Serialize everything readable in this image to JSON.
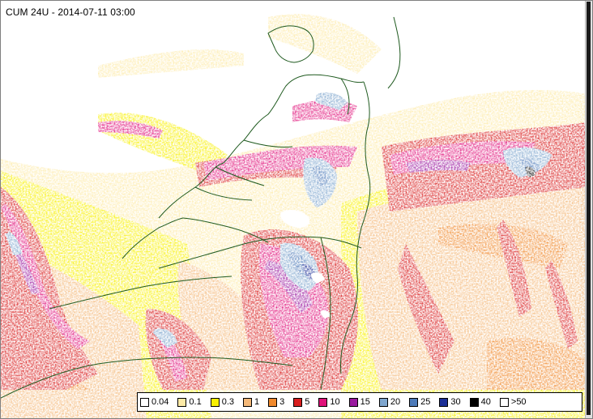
{
  "title": "CUM 24U - 2014-07-11 03:00",
  "legend": [
    {
      "label": "0.04",
      "color": "#ffffff"
    },
    {
      "label": "0.1",
      "color": "#fdeaa6"
    },
    {
      "label": "0.3",
      "color": "#f8f000"
    },
    {
      "label": "1",
      "color": "#f4b878"
    },
    {
      "label": "3",
      "color": "#f0892c"
    },
    {
      "label": "5",
      "color": "#d81e1e"
    },
    {
      "label": "10",
      "color": "#e0127a"
    },
    {
      "label": "15",
      "color": "#9a199f"
    },
    {
      "label": "20",
      "color": "#7fa6ce"
    },
    {
      "label": "25",
      "color": "#4d7ab8"
    },
    {
      "label": "30",
      "color": "#1c2f96"
    },
    {
      "label": "40",
      "color": "#000000"
    },
    {
      "label": ">50",
      "color": "#ffffff"
    }
  ]
}
